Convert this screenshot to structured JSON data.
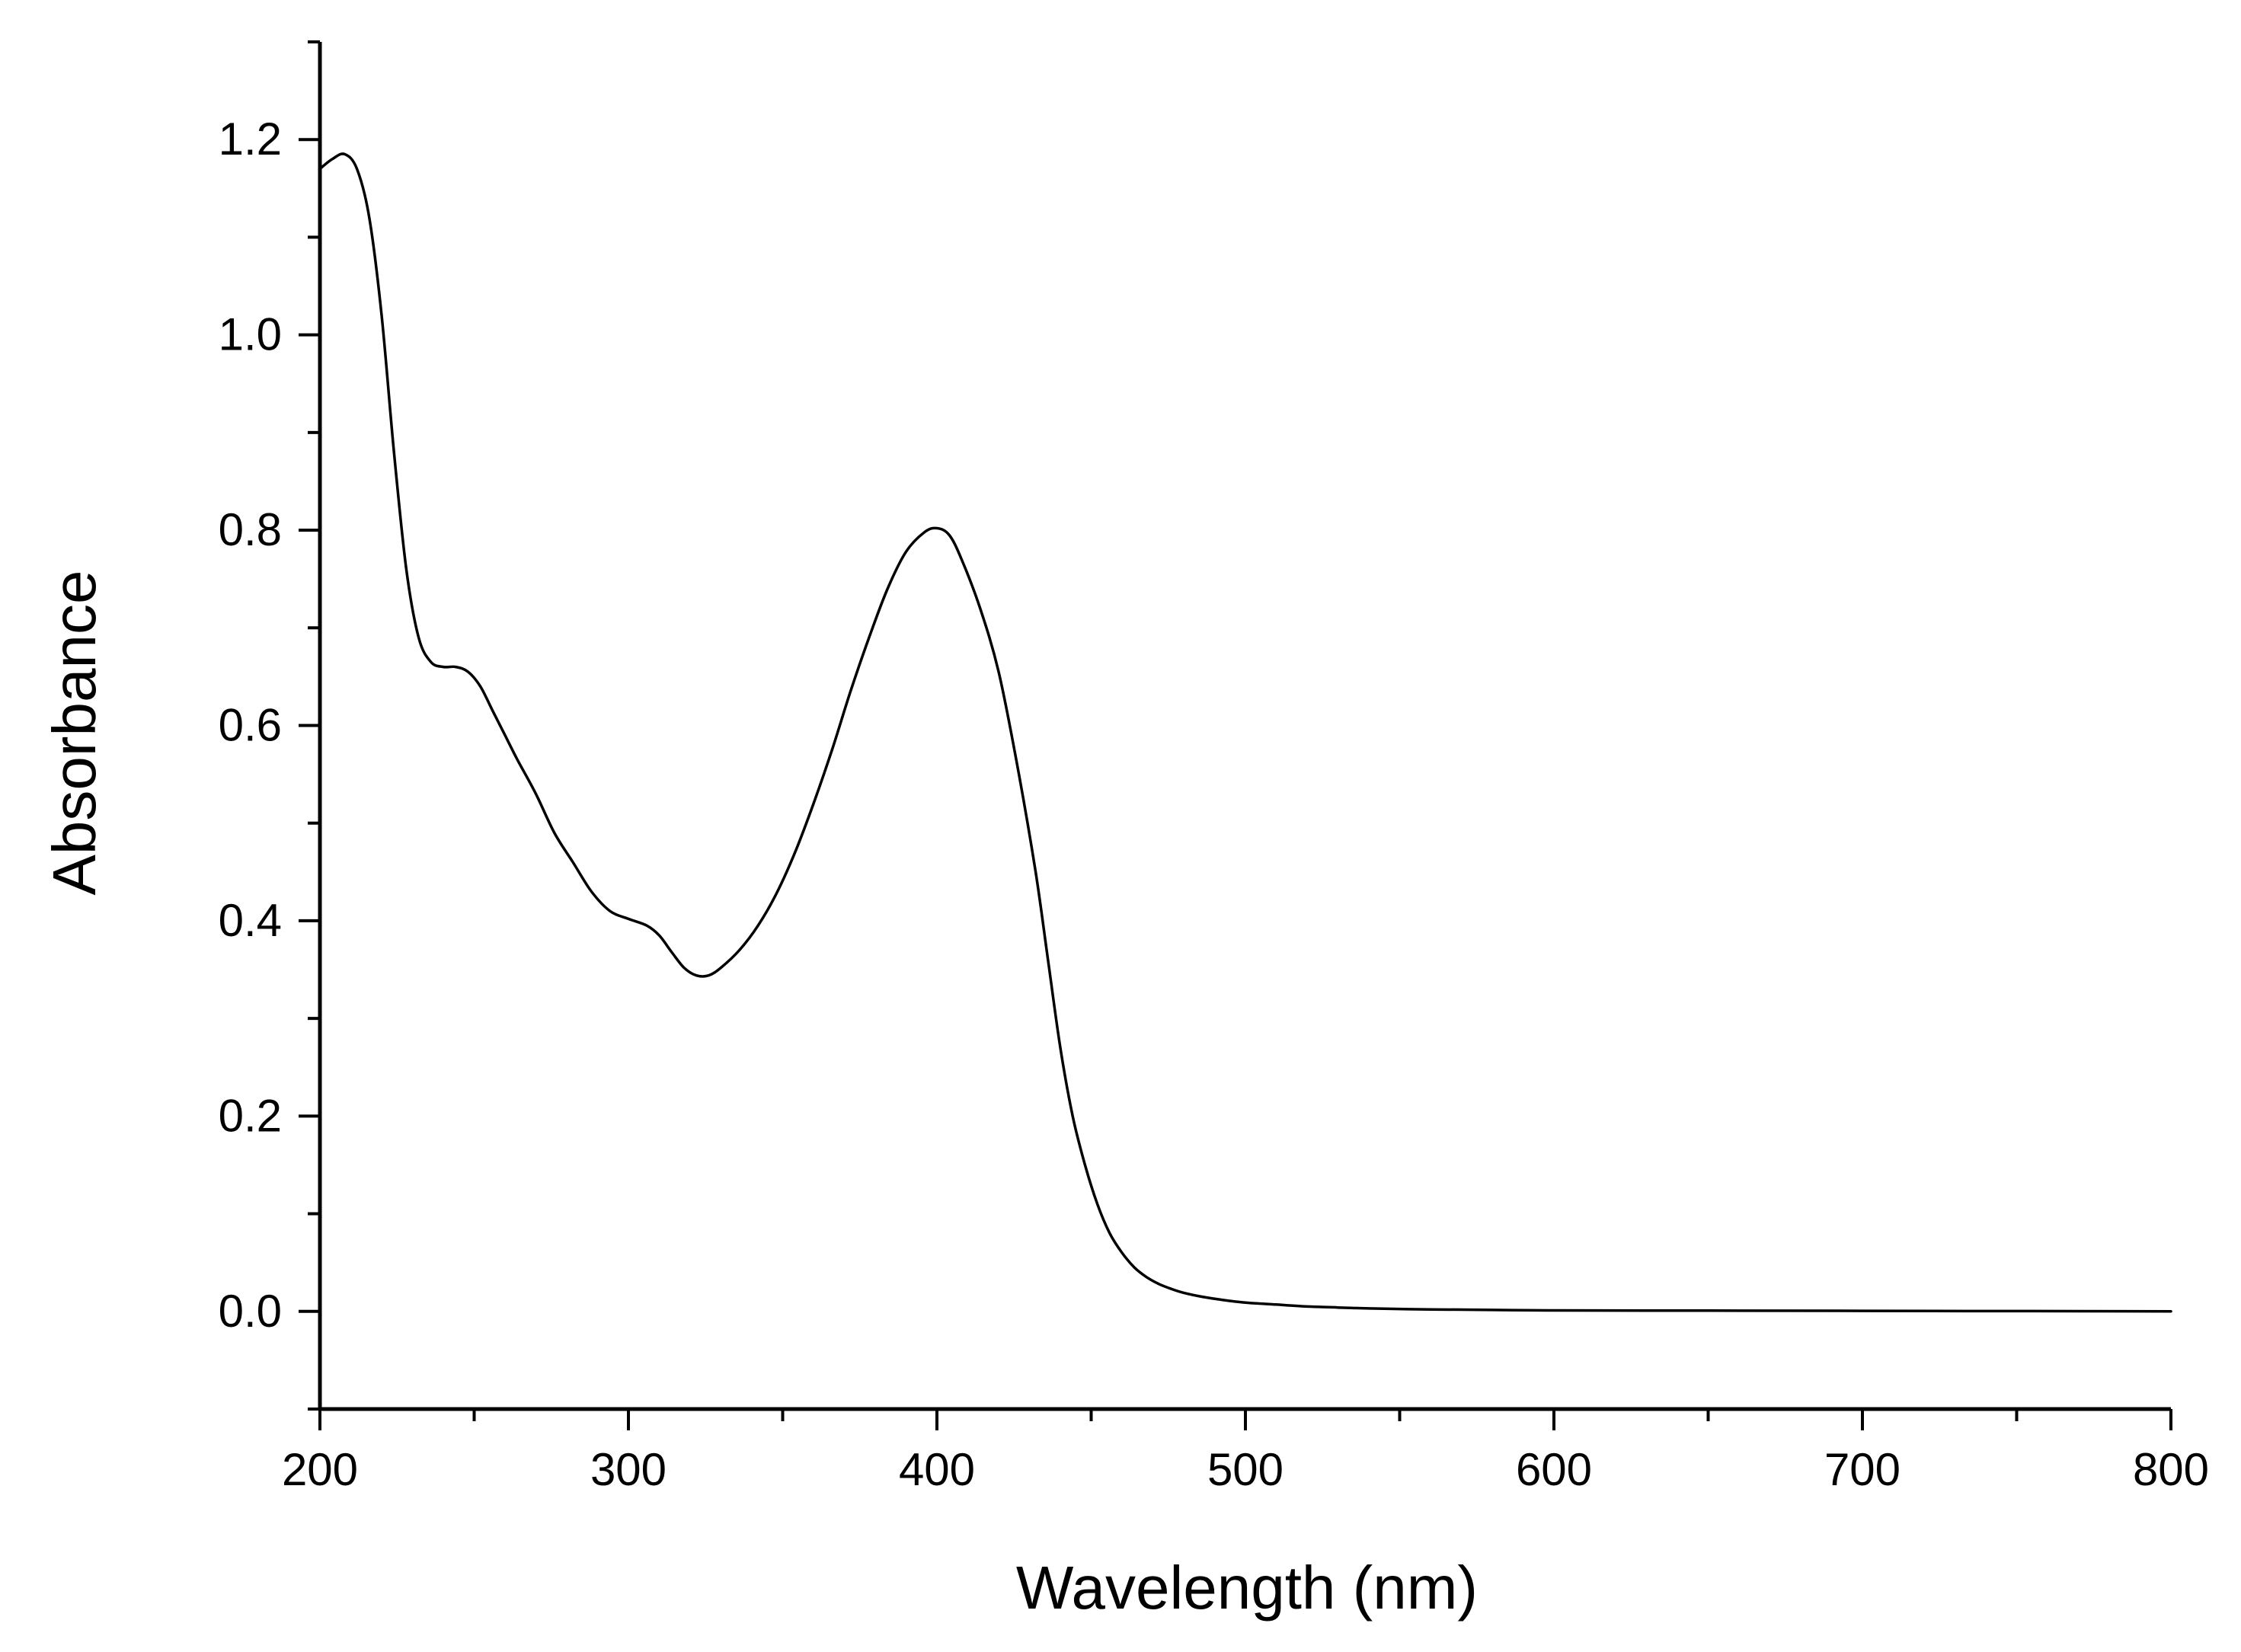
{
  "chart_data": {
    "type": "line",
    "title": "",
    "xlabel": "Wavelength (nm)",
    "ylabel": "Absorbance",
    "xlim": [
      200,
      800
    ],
    "ylim": [
      -0.1,
      1.3
    ],
    "grid": false,
    "x_ticks": [
      200,
      300,
      400,
      500,
      600,
      700,
      800
    ],
    "x_tick_labels": [
      "200",
      "300",
      "400",
      "500",
      "600",
      "700",
      "800"
    ],
    "y_ticks": [
      0.0,
      0.2,
      0.4,
      0.6,
      0.8,
      1.0,
      1.2
    ],
    "y_tick_labels": [
      "0.0",
      "0.2",
      "0.4",
      "0.6",
      "0.8",
      "1.0",
      "1.2"
    ],
    "line_color": "#000000",
    "series": [
      {
        "x": [
          200,
          204,
          208,
          212,
          216,
          220,
          224,
          228,
          232,
          236,
          240,
          244,
          248,
          252,
          256,
          260,
          264,
          270,
          276,
          282,
          288,
          294,
          300,
          306,
          310,
          314,
          318,
          322,
          326,
          330,
          336,
          342,
          348,
          354,
          360,
          366,
          372,
          378,
          384,
          390,
          396,
          400,
          404,
          408,
          414,
          420,
          426,
          432,
          436,
          440,
          444,
          448,
          452,
          456,
          460,
          464,
          468,
          472,
          476,
          480,
          486,
          492,
          500,
          510,
          520,
          530,
          540,
          560,
          580,
          600,
          650,
          700,
          750,
          800
        ],
        "y": [
          1.17,
          1.18,
          1.185,
          1.17,
          1.12,
          1.02,
          0.88,
          0.76,
          0.69,
          0.665,
          0.66,
          0.66,
          0.655,
          0.64,
          0.615,
          0.59,
          0.565,
          0.53,
          0.49,
          0.46,
          0.43,
          0.41,
          0.402,
          0.395,
          0.385,
          0.368,
          0.352,
          0.344,
          0.344,
          0.352,
          0.37,
          0.395,
          0.428,
          0.47,
          0.52,
          0.575,
          0.635,
          0.69,
          0.74,
          0.778,
          0.798,
          0.802,
          0.795,
          0.77,
          0.72,
          0.655,
          0.56,
          0.45,
          0.36,
          0.27,
          0.2,
          0.15,
          0.11,
          0.08,
          0.06,
          0.045,
          0.035,
          0.028,
          0.023,
          0.019,
          0.015,
          0.012,
          0.009,
          0.007,
          0.005,
          0.004,
          0.003,
          0.002,
          0.0015,
          0.001,
          0.0008,
          0.0005,
          0.0003,
          0.0
        ]
      }
    ]
  }
}
